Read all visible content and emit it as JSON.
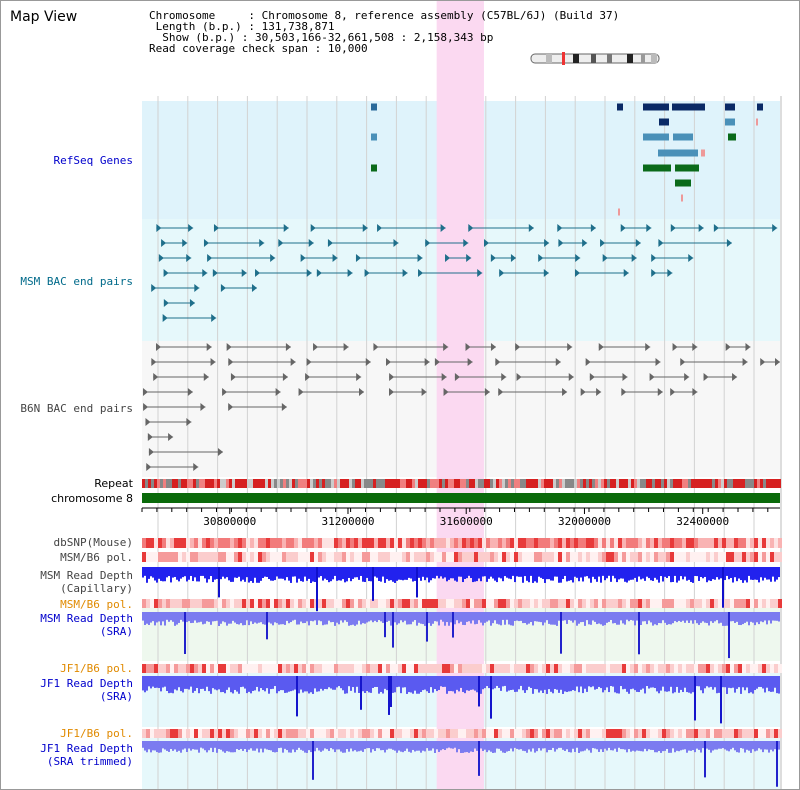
{
  "window": {
    "title": "Map View"
  },
  "info": {
    "chromosome_key": "Chromosome",
    "chromosome_val": "Chromosome 8, reference assembly (C57BL/6J) (Build 37)",
    "length_key": "Length (b.p.)",
    "length_val": "131,738,871",
    "show_key": "Show (b.p.)",
    "show_val": "30,503,166-32,661,508 : 2,158,343 bp",
    "coverage_key": "Read coverage check span",
    "coverage_val": "10,000"
  },
  "tracks": {
    "refseq": "RefSeq Genes",
    "msm_bac": "MSM BAC end pairs",
    "b6n_bac": "B6N BAC end pairs",
    "repeat": "Repeat",
    "chromosome": "chromosome 8",
    "dbsnp": "dbSNP(Mouse)",
    "msm_b6_pol": "MSM/B6 pol.",
    "msm_depth_cap": "MSM Read Depth\n(Capillary)",
    "msm_b6_pol2": "MSM/B6 pol.",
    "msm_depth_sra": "MSM Read Depth\n(SRA)",
    "jf1_b6_pol": "JF1/B6 pol.",
    "jf1_depth_sra": "JF1 Read Depth\n(SRA)",
    "jf1_b6_pol2": "JF1/B6 pol.",
    "jf1_depth_trim": "JF1 Read Depth\n(SRA trimmed)"
  },
  "axis": {
    "range": [
      30503166,
      32661508
    ],
    "ticks": [
      "30800000",
      "31200000",
      "31600000",
      "32000000",
      "32400000"
    ],
    "tick_values": [
      30800000,
      31200000,
      31600000,
      32000000,
      32400000
    ]
  },
  "highlight": {
    "start": 31500000,
    "end": 31660000
  },
  "colors": {
    "refseq_bg": "#dff3fb",
    "msm_bg": "#e6f8fb",
    "b6n_bg": "#f7f7f7",
    "gene_dark": "#0a2a66",
    "gene_mid": "#4a90b8",
    "gene_green": "#0a6a1a",
    "bac_teal": "#1f6f8b",
    "bac_grey": "#666666",
    "chromosome": "#0a6a0a",
    "highlight": "#fbd9f1",
    "depth_blue": "#2222ee",
    "depth_light": "#7b7bf0"
  }
}
